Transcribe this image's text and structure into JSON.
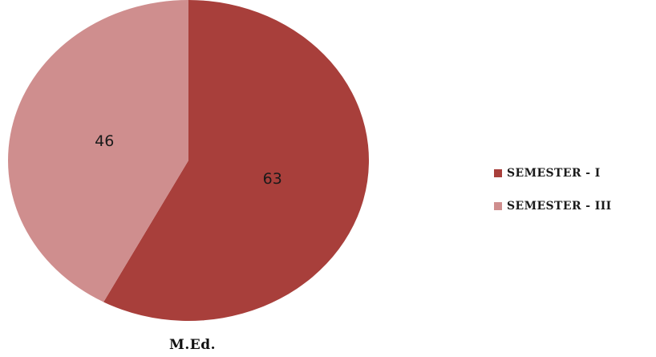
{
  "chart_data": {
    "type": "pie",
    "title": "M.Ed.",
    "categories": [
      "SEMESTER - I",
      "SEMESTER - III"
    ],
    "values": [
      63,
      46
    ],
    "data_labels": [
      "63",
      "46"
    ],
    "colors": [
      "#a83f3b",
      "#cf8e8e"
    ],
    "legend_position": "right",
    "start_angle": "12 o'clock",
    "direction": "clockwise"
  }
}
